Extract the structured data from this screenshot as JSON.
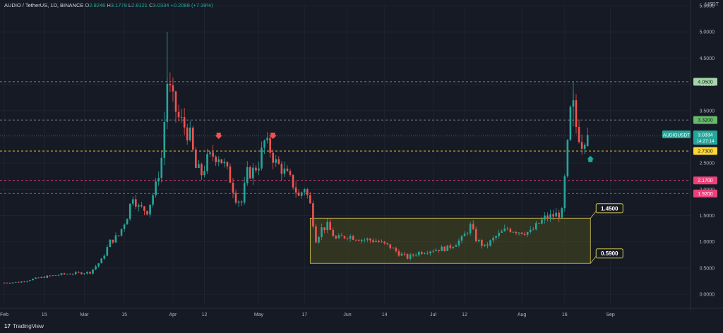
{
  "header": {
    "symbol": "AUDIO / TetherUS, 1D, BINANCE",
    "open_label": "O",
    "open": "2.8246",
    "high_label": "H",
    "high": "3.1779",
    "low_label": "L",
    "low": "2.8121",
    "close_label": "C",
    "close": "3.0334",
    "change": "+0.2088 (+7.39%)"
  },
  "currency": "USDT",
  "brand": "TradingView",
  "colors": {
    "up": "#26a69a",
    "down": "#ef5350",
    "background": "#161a25",
    "zone_fill": "#4a4a20",
    "zone_border": "#d4c84a"
  },
  "chart_data": {
    "type": "candlestick",
    "y_axis": {
      "min": -0.2,
      "max": 5.5,
      "ticks": [
        "0.0000",
        "0.5000",
        "1.0000",
        "1.5000",
        "2.0000",
        "2.5000",
        "3.0000",
        "3.5000",
        "4.0000",
        "4.5000",
        "5.0000",
        "5.5000"
      ],
      "tick_values": [
        0,
        0.5,
        1,
        1.5,
        2,
        2.5,
        3,
        3.5,
        4,
        4.5,
        5,
        5.5
      ]
    },
    "x_axis": {
      "start_day": 0,
      "end_day": 240,
      "labels": [
        {
          "text": "Feb",
          "day": 0
        },
        {
          "text": "15",
          "day": 14
        },
        {
          "text": "Mar",
          "day": 28
        },
        {
          "text": "15",
          "day": 42
        },
        {
          "text": "Apr",
          "day": 59
        },
        {
          "text": "12",
          "day": 70
        },
        {
          "text": "May",
          "day": 89
        },
        {
          "text": "17",
          "day": 105
        },
        {
          "text": "Jun",
          "day": 120
        },
        {
          "text": "14",
          "day": 133
        },
        {
          "text": "Jul",
          "day": 150
        },
        {
          "text": "12",
          "day": 161
        },
        {
          "text": "Aug",
          "day": 181
        },
        {
          "text": "16",
          "day": 196
        },
        {
          "text": "Sep",
          "day": 212
        }
      ]
    },
    "levels": [
      {
        "value": 4.05,
        "label": "4.0500",
        "color": "#a5d6a7",
        "text_color": "#161a25",
        "line": "#9598a1"
      },
      {
        "value": 3.32,
        "label": "3.3200",
        "color": "#66bb6a",
        "text_color": "#161a25",
        "line": "#9598a1"
      },
      {
        "value": 2.73,
        "label": "2.7300",
        "color": "#fdd835",
        "text_color": "#161a25",
        "line": "#fdd835"
      },
      {
        "value": 2.17,
        "label": "2.1700",
        "color": "#ec407a",
        "text_color": "#ffffff",
        "line": "#ec407a"
      },
      {
        "value": 1.92,
        "label": "1.9200",
        "color": "#ec407a",
        "text_color": "#ffffff",
        "line": "#ec407a"
      }
    ],
    "last_price": {
      "symbol": "AUDIOUSDT",
      "value": 3.0334,
      "label": "3.0334",
      "countdown": "14:27:14",
      "color": "#26a69a"
    },
    "zone": {
      "start_day": 107,
      "end_day": 205,
      "top": 1.45,
      "bottom": 0.59,
      "top_label": "1.4500",
      "bottom_label": "0.5900"
    },
    "markers": [
      {
        "day": 75,
        "value": 3.0,
        "type": "down-arrow",
        "color": "#ef5350"
      },
      {
        "day": 94,
        "value": 3.0,
        "type": "down-arrow",
        "color": "#ef5350"
      },
      {
        "day": 205,
        "value": 2.6,
        "type": "up-arrow",
        "color": "#26a69a"
      }
    ],
    "anchors": [
      [
        0,
        0.22
      ],
      [
        5,
        0.23
      ],
      [
        10,
        0.29
      ],
      [
        15,
        0.34
      ],
      [
        20,
        0.38
      ],
      [
        25,
        0.4
      ],
      [
        30,
        0.42
      ],
      [
        34,
        0.65
      ],
      [
        37,
        1.0
      ],
      [
        40,
        1.12
      ],
      [
        43,
        1.5
      ],
      [
        45,
        1.9
      ],
      [
        47,
        1.65
      ],
      [
        50,
        1.6
      ],
      [
        53,
        2.05
      ],
      [
        55,
        2.6
      ],
      [
        56,
        3.3
      ],
      [
        57,
        4.05
      ],
      [
        59,
        3.65
      ],
      [
        61,
        3.35
      ],
      [
        63,
        3.2
      ],
      [
        65,
        3.0
      ],
      [
        67,
        2.4
      ],
      [
        69,
        2.3
      ],
      [
        71,
        2.55
      ],
      [
        73,
        2.65
      ],
      [
        75,
        2.65
      ],
      [
        77,
        2.45
      ],
      [
        79,
        2.2
      ],
      [
        81,
        1.85
      ],
      [
        83,
        1.75
      ],
      [
        85,
        2.3
      ],
      [
        87,
        2.35
      ],
      [
        89,
        2.5
      ],
      [
        91,
        2.9
      ],
      [
        93,
        2.75
      ],
      [
        95,
        2.5
      ],
      [
        97,
        2.4
      ],
      [
        99,
        2.25
      ],
      [
        101,
        2.1
      ],
      [
        103,
        1.85
      ],
      [
        105,
        2.05
      ],
      [
        107,
        1.7
      ],
      [
        109,
        1.05
      ],
      [
        111,
        1.25
      ],
      [
        113,
        1.3
      ],
      [
        116,
        1.05
      ],
      [
        120,
        1.12
      ],
      [
        125,
        1.05
      ],
      [
        130,
        1.02
      ],
      [
        135,
        0.9
      ],
      [
        138,
        0.78
      ],
      [
        141,
        0.7
      ],
      [
        145,
        0.8
      ],
      [
        150,
        0.85
      ],
      [
        155,
        0.88
      ],
      [
        160,
        1.05
      ],
      [
        163,
        1.3
      ],
      [
        165,
        1.05
      ],
      [
        168,
        0.9
      ],
      [
        172,
        1.1
      ],
      [
        176,
        1.25
      ],
      [
        180,
        1.2
      ],
      [
        184,
        1.18
      ],
      [
        187,
        1.35
      ],
      [
        189,
        1.45
      ],
      [
        192,
        1.5
      ],
      [
        195,
        1.55
      ],
      [
        197,
        2.8
      ],
      [
        198,
        3.45
      ],
      [
        199,
        3.55
      ],
      [
        200,
        3.2
      ],
      [
        201,
        3.05
      ],
      [
        202,
        2.9
      ],
      [
        203,
        3.03
      ]
    ],
    "last_candle": {
      "day": 204,
      "open": 2.8246,
      "high": 3.1779,
      "low": 2.8121,
      "close": 3.0334
    }
  }
}
